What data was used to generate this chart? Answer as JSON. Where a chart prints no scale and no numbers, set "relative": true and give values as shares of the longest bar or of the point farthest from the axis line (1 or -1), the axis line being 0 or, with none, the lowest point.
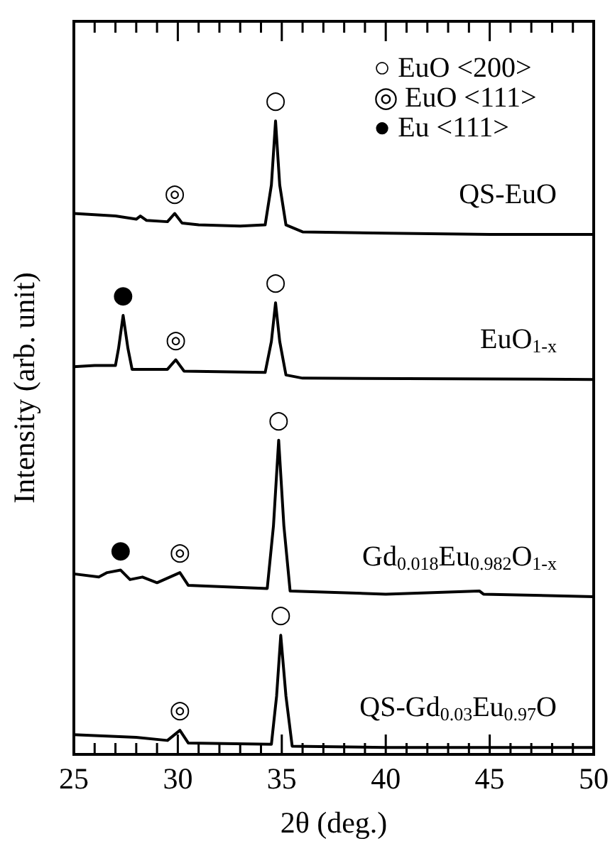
{
  "chart_data": {
    "type": "line",
    "relative": true,
    "xlabel": "2θ (deg.)",
    "ylabel": "Intensity (arb. unit)",
    "xlim": [
      25,
      50
    ],
    "xticks": [
      25,
      {
        "value": 26,
        "label": null
      },
      {
        "value": 27,
        "label": null
      },
      {
        "value": 28,
        "label": null
      },
      {
        "value": 29,
        "label": null
      },
      30,
      {
        "value": 31,
        "label": null
      },
      {
        "value": 32,
        "label": null
      },
      {
        "value": 33,
        "label": null
      },
      {
        "value": 34,
        "label": null
      },
      35,
      {
        "value": 36,
        "label": null
      },
      {
        "value": 37,
        "label": null
      },
      {
        "value": 38,
        "label": null
      },
      {
        "value": 39,
        "label": null
      },
      40,
      {
        "value": 41,
        "label": null
      },
      {
        "value": 42,
        "label": null
      },
      {
        "value": 43,
        "label": null
      },
      {
        "value": 44,
        "label": null
      },
      45,
      {
        "value": 46,
        "label": null
      },
      {
        "value": 47,
        "label": null
      },
      {
        "value": 48,
        "label": null
      },
      {
        "value": 49,
        "label": null
      },
      50
    ],
    "tick_labels": "x",
    "grid": false,
    "series": [
      {
        "name": "QS-EuO",
        "color": "#000000",
        "x": [
          25,
          26,
          27,
          28,
          28.2,
          28.5,
          29.5,
          29.85,
          30.2,
          31,
          33,
          34.2,
          34.5,
          34.7,
          34.9,
          35.2,
          36,
          40,
          45,
          50
        ],
        "values": [
          0.854,
          0.852,
          0.85,
          0.845,
          0.85,
          0.843,
          0.841,
          0.854,
          0.839,
          0.836,
          0.834,
          0.836,
          0.899,
          1.0,
          0.899,
          0.836,
          0.825,
          0.823,
          0.821,
          0.821
        ]
      },
      {
        "name": "EuO$_{1-x}$",
        "color": "#000000",
        "x": [
          25,
          26,
          27,
          27.15,
          27.37,
          27.6,
          27.8,
          29.5,
          29.9,
          30.3,
          34.2,
          34.5,
          34.7,
          34.9,
          35.2,
          36,
          50
        ],
        "values": [
          0.612,
          0.614,
          0.614,
          0.641,
          0.693,
          0.641,
          0.608,
          0.608,
          0.623,
          0.605,
          0.603,
          0.652,
          0.713,
          0.652,
          0.599,
          0.594,
          0.592
        ]
      },
      {
        "name": "Gd$_{0.018}$Eu$_{0.982}$O$_{1-x}$",
        "color": "#000000",
        "x": [
          25,
          26.2,
          26.6,
          27.25,
          27.7,
          28.3,
          29,
          30.1,
          30.5,
          34.3,
          34.6,
          34.85,
          35.1,
          35.4,
          40,
          44.5,
          44.7,
          50
        ],
        "values": [
          0.285,
          0.28,
          0.287,
          0.291,
          0.276,
          0.28,
          0.271,
          0.287,
          0.267,
          0.262,
          0.361,
          0.496,
          0.361,
          0.258,
          0.253,
          0.258,
          0.253,
          0.249
        ]
      },
      {
        "name": "QS-Gd$_{0.03}$Eu$_{0.97}$O",
        "color": "#000000",
        "x": [
          25,
          28,
          29.5,
          30.1,
          30.5,
          34.5,
          34.75,
          34.95,
          35.2,
          35.5,
          40,
          50
        ],
        "values": [
          0.031,
          0.027,
          0.022,
          0.038,
          0.018,
          0.016,
          0.092,
          0.188,
          0.092,
          0.013,
          0.011,
          0.011
        ]
      }
    ],
    "annotations": [
      "○ EuO <200>",
      "◎ EuO <111>",
      "● Eu <111>",
      {
        "text": "○",
        "x": 34.7,
        "y": 1.0
      },
      {
        "text": "◎",
        "x": 29.85,
        "y": 0.854
      },
      {
        "text": "●",
        "x": 27.37,
        "y": 0.693
      },
      {
        "text": "◎",
        "x": 29.9,
        "y": 0.623
      },
      {
        "text": "○",
        "x": 34.7,
        "y": 0.713
      },
      {
        "text": "●",
        "x": 27.25,
        "y": 0.291
      },
      {
        "text": "◎",
        "x": 30.1,
        "y": 0.287
      },
      {
        "text": "○",
        "x": 34.85,
        "y": 0.496
      },
      {
        "text": "◎",
        "x": 30.1,
        "y": 0.038
      },
      {
        "text": "○",
        "x": 34.95,
        "y": 0.188
      }
    ]
  }
}
